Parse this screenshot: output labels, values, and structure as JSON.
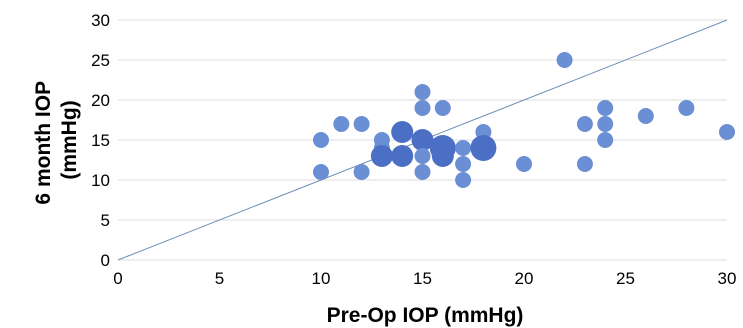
{
  "chart_data": {
    "type": "scatter",
    "xlabel": "Pre-Op IOP (mmHg)",
    "ylabel_lines": [
      "6 month IOP",
      "(mmHg)"
    ],
    "xlim": [
      0,
      30
    ],
    "ylim": [
      0,
      30
    ],
    "xticks": [
      0,
      5,
      10,
      15,
      20,
      25,
      30
    ],
    "yticks": [
      0,
      5,
      10,
      15,
      20,
      25,
      30
    ],
    "grid": "horizontal",
    "reference_line": {
      "label": "",
      "from": [
        0,
        0
      ],
      "to": [
        30,
        30
      ]
    },
    "series": [
      {
        "color": "#6b8fd4",
        "points": [
          {
            "x": 10,
            "y": 15,
            "n": 1
          },
          {
            "x": 10,
            "y": 11,
            "n": 1
          },
          {
            "x": 11,
            "y": 17,
            "n": 1
          },
          {
            "x": 12,
            "y": 17,
            "n": 1
          },
          {
            "x": 12,
            "y": 11,
            "n": 1
          },
          {
            "x": 13,
            "y": 15,
            "n": 1
          },
          {
            "x": 13,
            "y": 14,
            "n": 1
          },
          {
            "x": 13,
            "y": 13,
            "n": 2
          },
          {
            "x": 14,
            "y": 16,
            "n": 2
          },
          {
            "x": 14,
            "y": 13,
            "n": 2
          },
          {
            "x": 15,
            "y": 21,
            "n": 1
          },
          {
            "x": 15,
            "y": 19,
            "n": 1
          },
          {
            "x": 15,
            "y": 15,
            "n": 2
          },
          {
            "x": 15,
            "y": 13,
            "n": 1
          },
          {
            "x": 15,
            "y": 11,
            "n": 1
          },
          {
            "x": 16,
            "y": 19,
            "n": 1
          },
          {
            "x": 16,
            "y": 14,
            "n": 3
          },
          {
            "x": 16,
            "y": 13,
            "n": 2
          },
          {
            "x": 17,
            "y": 14,
            "n": 1
          },
          {
            "x": 17,
            "y": 12,
            "n": 1
          },
          {
            "x": 17,
            "y": 10,
            "n": 1
          },
          {
            "x": 18,
            "y": 16,
            "n": 1
          },
          {
            "x": 18,
            "y": 14,
            "n": 3
          },
          {
            "x": 20,
            "y": 12,
            "n": 1
          },
          {
            "x": 22,
            "y": 25,
            "n": 1
          },
          {
            "x": 23,
            "y": 17,
            "n": 1
          },
          {
            "x": 23,
            "y": 12,
            "n": 1
          },
          {
            "x": 24,
            "y": 19,
            "n": 1
          },
          {
            "x": 24,
            "y": 17,
            "n": 1
          },
          {
            "x": 24,
            "y": 15,
            "n": 1
          },
          {
            "x": 26,
            "y": 18,
            "n": 1
          },
          {
            "x": 28,
            "y": 19,
            "n": 1
          },
          {
            "x": 30,
            "y": 16,
            "n": 1
          }
        ]
      }
    ]
  },
  "colors": {
    "points": "#6b8fd4",
    "points_dense": "#4a6fc4",
    "grid": "#dcdcdc",
    "reference_line": "#6d8fb5"
  }
}
